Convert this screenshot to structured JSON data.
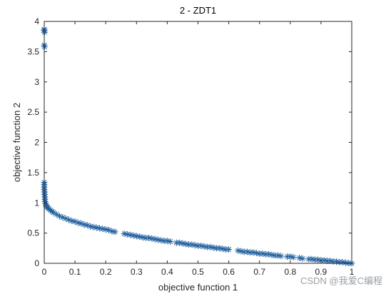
{
  "chart_data": {
    "type": "scatter",
    "title": "2 - ZDT1",
    "xlabel": "objective function 1",
    "ylabel": "objective function 2",
    "xlim": [
      0,
      1
    ],
    "ylim": [
      0,
      4
    ],
    "xticks": [
      "0",
      "0.1",
      "0.2",
      "0.3",
      "0.4",
      "0.5",
      "0.6",
      "0.7",
      "0.8",
      "0.9",
      "1"
    ],
    "yticks": [
      "0",
      "0.5",
      "1",
      "1.5",
      "2",
      "2.5",
      "3",
      "3.5",
      "4"
    ],
    "marker": "asterisk",
    "grid": false,
    "colors": {
      "marker": "#1f5f9f",
      "axis": "#262626",
      "background": "#ffffff"
    },
    "series": [
      {
        "points": [
          [
            0.0,
            3.87
          ],
          [
            0.0,
            3.85
          ],
          [
            0.001,
            3.82
          ],
          [
            0.0,
            3.61
          ],
          [
            0.001,
            3.58
          ],
          [
            0.0,
            1.34
          ],
          [
            0.0,
            1.3
          ],
          [
            0.0,
            1.26
          ],
          [
            0.0,
            1.22
          ],
          [
            0.001,
            1.18
          ],
          [
            0.001,
            1.14
          ],
          [
            0.002,
            1.1
          ],
          [
            0.002,
            1.06
          ],
          [
            0.003,
            1.02
          ],
          [
            0.004,
            0.99
          ],
          [
            0.006,
            0.96
          ],
          [
            0.008,
            0.94
          ],
          [
            0.011,
            0.92
          ],
          [
            0.015,
            0.9
          ],
          [
            0.02,
            0.88
          ],
          [
            0.025,
            0.86
          ],
          [
            0.03,
            0.84
          ],
          [
            0.04,
            0.81
          ],
          [
            0.05,
            0.78
          ],
          [
            0.06,
            0.76
          ],
          [
            0.07,
            0.74
          ],
          [
            0.08,
            0.72
          ],
          [
            0.09,
            0.7
          ],
          [
            0.1,
            0.69
          ],
          [
            0.11,
            0.67
          ],
          [
            0.12,
            0.66
          ],
          [
            0.13,
            0.64
          ],
          [
            0.14,
            0.63
          ],
          [
            0.15,
            0.61
          ],
          [
            0.16,
            0.6
          ],
          [
            0.17,
            0.59
          ],
          [
            0.18,
            0.58
          ],
          [
            0.19,
            0.57
          ],
          [
            0.2,
            0.56
          ],
          [
            0.21,
            0.55
          ],
          [
            0.22,
            0.53
          ],
          [
            0.23,
            0.52
          ],
          [
            0.26,
            0.49
          ],
          [
            0.27,
            0.48
          ],
          [
            0.28,
            0.47
          ],
          [
            0.29,
            0.46
          ],
          [
            0.3,
            0.45
          ],
          [
            0.31,
            0.44
          ],
          [
            0.32,
            0.43
          ],
          [
            0.33,
            0.42
          ],
          [
            0.34,
            0.42
          ],
          [
            0.35,
            0.41
          ],
          [
            0.36,
            0.4
          ],
          [
            0.37,
            0.39
          ],
          [
            0.38,
            0.38
          ],
          [
            0.39,
            0.37
          ],
          [
            0.4,
            0.37
          ],
          [
            0.41,
            0.36
          ],
          [
            0.43,
            0.34
          ],
          [
            0.44,
            0.34
          ],
          [
            0.45,
            0.33
          ],
          [
            0.46,
            0.32
          ],
          [
            0.47,
            0.31
          ],
          [
            0.48,
            0.31
          ],
          [
            0.49,
            0.3
          ],
          [
            0.5,
            0.29
          ],
          [
            0.51,
            0.29
          ],
          [
            0.52,
            0.28
          ],
          [
            0.53,
            0.27
          ],
          [
            0.54,
            0.27
          ],
          [
            0.55,
            0.26
          ],
          [
            0.56,
            0.25
          ],
          [
            0.57,
            0.25
          ],
          [
            0.58,
            0.24
          ],
          [
            0.59,
            0.23
          ],
          [
            0.6,
            0.23
          ],
          [
            0.63,
            0.21
          ],
          [
            0.64,
            0.2
          ],
          [
            0.65,
            0.19
          ],
          [
            0.66,
            0.19
          ],
          [
            0.67,
            0.18
          ],
          [
            0.68,
            0.18
          ],
          [
            0.69,
            0.17
          ],
          [
            0.7,
            0.16
          ],
          [
            0.71,
            0.16
          ],
          [
            0.72,
            0.15
          ],
          [
            0.73,
            0.15
          ],
          [
            0.74,
            0.14
          ],
          [
            0.75,
            0.13
          ],
          [
            0.76,
            0.13
          ],
          [
            0.77,
            0.12
          ],
          [
            0.79,
            0.11
          ],
          [
            0.8,
            0.11
          ],
          [
            0.81,
            0.1
          ],
          [
            0.83,
            0.09
          ],
          [
            0.84,
            0.08
          ],
          [
            0.86,
            0.07
          ],
          [
            0.87,
            0.07
          ],
          [
            0.88,
            0.06
          ],
          [
            0.89,
            0.06
          ],
          [
            0.9,
            0.05
          ],
          [
            0.91,
            0.05
          ],
          [
            0.92,
            0.04
          ],
          [
            0.93,
            0.04
          ],
          [
            0.94,
            0.03
          ],
          [
            0.95,
            0.03
          ],
          [
            0.96,
            0.02
          ],
          [
            0.97,
            0.02
          ],
          [
            0.98,
            0.01
          ],
          [
            0.99,
            0.005
          ],
          [
            1.0,
            0.0
          ]
        ]
      }
    ]
  },
  "watermark": "CSDN @我爱C编程"
}
